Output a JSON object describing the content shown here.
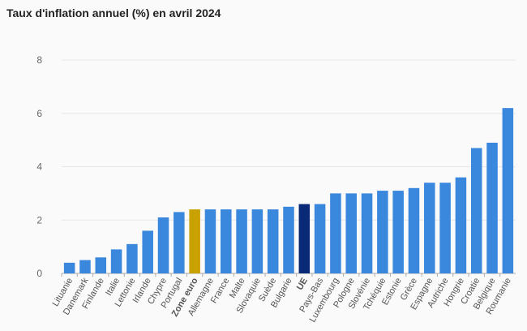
{
  "chart_data": {
    "type": "bar",
    "title": "Taux d'inflation annuel (%) en avril 2024",
    "xlabel": "",
    "ylabel": "",
    "ylim": [
      0,
      8
    ],
    "yticks": [
      0,
      2,
      4,
      6,
      8
    ],
    "grid": true,
    "categories": [
      "Lituanie",
      "Danemark",
      "Finlande",
      "Italie",
      "Lettonie",
      "Irlande",
      "Chypre",
      "Portugal",
      "Zone euro",
      "Allemagne",
      "France",
      "Malte",
      "Slovaquie",
      "Suède",
      "Bulgarie",
      "UE",
      "Pays-Bas",
      "Luxembourg",
      "Pologne",
      "Slovénie",
      "Tchéquie",
      "Estonie",
      "Grèce",
      "Espagne",
      "Autriche",
      "Hongrie",
      "Croatie",
      "Belgique",
      "Roumanie"
    ],
    "values": [
      0.4,
      0.5,
      0.6,
      0.9,
      1.1,
      1.6,
      2.1,
      2.3,
      2.4,
      2.4,
      2.4,
      2.4,
      2.4,
      2.4,
      2.5,
      2.6,
      2.6,
      3.0,
      3.0,
      3.0,
      3.1,
      3.1,
      3.2,
      3.4,
      3.4,
      3.6,
      4.7,
      4.9,
      6.2
    ],
    "highlight": {
      "Zone euro": "#c9a100",
      "UE": "#0a2a78"
    },
    "bold_labels": [
      "Zone euro",
      "UE"
    ],
    "colors": {
      "bar": "#3a87de",
      "grid": "#e6e6e6"
    }
  }
}
